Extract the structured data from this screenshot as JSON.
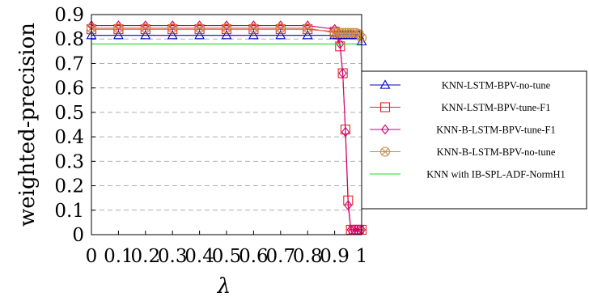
{
  "chart_data": {
    "type": "line",
    "xlabel": "λ",
    "ylabel": "weighted-precision",
    "xlim": [
      0,
      1
    ],
    "ylim": [
      0,
      0.9
    ],
    "xticks": [
      "0",
      "0.1",
      "0.2",
      "0.3",
      "0.4",
      "0.5",
      "0.6",
      "0.7",
      "0.8",
      "0.9",
      "1"
    ],
    "yticks": [
      "0",
      "0.1",
      "0.2",
      "0.3",
      "0.4",
      "0.5",
      "0.6",
      "0.7",
      "0.8",
      "0.9"
    ],
    "grid": "horizontal dashed",
    "legend_position": "right, outside plot",
    "series": [
      {
        "name": "KNN-LSTM-BPV-no-tune",
        "color": "#0000cc",
        "marker": "triangle",
        "x": [
          0,
          0.1,
          0.2,
          0.3,
          0.4,
          0.5,
          0.6,
          0.7,
          0.8,
          0.9,
          0.91,
          0.92,
          0.93,
          0.94,
          0.95,
          0.96,
          0.97,
          0.98,
          0.99,
          1
        ],
        "y": [
          0.815,
          0.815,
          0.815,
          0.815,
          0.815,
          0.815,
          0.815,
          0.815,
          0.815,
          0.815,
          0.815,
          0.815,
          0.815,
          0.815,
          0.815,
          0.815,
          0.815,
          0.815,
          0.815,
          0.79
        ]
      },
      {
        "name": "KNN-LSTM-BPV-tune-F1",
        "color": "#ee2222",
        "marker": "square",
        "x": [
          0,
          0.1,
          0.2,
          0.3,
          0.4,
          0.5,
          0.6,
          0.7,
          0.8,
          0.9,
          0.92,
          0.93,
          0.94,
          0.95,
          0.96,
          0.97,
          0.98,
          0.99,
          1
        ],
        "y": [
          0.84,
          0.84,
          0.84,
          0.84,
          0.84,
          0.84,
          0.84,
          0.84,
          0.84,
          0.83,
          0.77,
          0.66,
          0.43,
          0.14,
          0.02,
          0.02,
          0.02,
          0.02,
          0.02
        ]
      },
      {
        "name": "KNN-B-LSTM-BPV-tune-F1",
        "color": "#cc0077",
        "marker": "diamond",
        "x": [
          0,
          0.1,
          0.2,
          0.3,
          0.4,
          0.5,
          0.6,
          0.7,
          0.8,
          0.9,
          0.92,
          0.93,
          0.94,
          0.95,
          0.96,
          0.97,
          0.98,
          0.99,
          1
        ],
        "y": [
          0.855,
          0.855,
          0.855,
          0.855,
          0.855,
          0.855,
          0.855,
          0.855,
          0.855,
          0.84,
          0.78,
          0.66,
          0.42,
          0.12,
          0.02,
          0.02,
          0.02,
          0.02,
          0.02
        ]
      },
      {
        "name": "KNN-B-LSTM-BPV-no-tune",
        "color": "#cc8844",
        "marker": "circle-x",
        "x": [
          0,
          0.1,
          0.2,
          0.3,
          0.4,
          0.5,
          0.6,
          0.7,
          0.8,
          0.9,
          0.91,
          0.92,
          0.93,
          0.94,
          0.95,
          0.96,
          0.97,
          0.98,
          0.99,
          1
        ],
        "y": [
          0.845,
          0.845,
          0.845,
          0.845,
          0.845,
          0.845,
          0.845,
          0.845,
          0.845,
          0.825,
          0.825,
          0.825,
          0.825,
          0.825,
          0.825,
          0.825,
          0.825,
          0.825,
          0.82,
          0.805
        ]
      },
      {
        "name": "KNN with IB-SPL-ADF-NormH1",
        "color": "#22dd22",
        "marker": "none",
        "x": [
          0,
          1
        ],
        "y": [
          0.78,
          0.78
        ]
      }
    ]
  }
}
